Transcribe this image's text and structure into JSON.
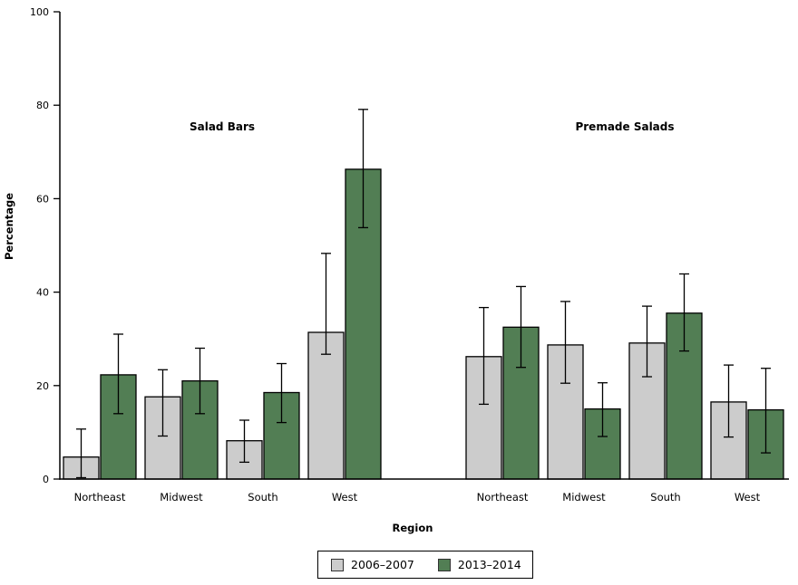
{
  "chart_data": {
    "type": "bar",
    "title": "",
    "xlabel": "Region",
    "ylabel": "Percentage",
    "ylim": [
      0,
      100
    ],
    "yticks": [
      0,
      20,
      40,
      60,
      80,
      100
    ],
    "grid": false,
    "error_bars": true,
    "bar_colors": {
      "gray": "#cccccc",
      "green": "#527e54"
    },
    "legend": {
      "position": "bottom",
      "entries": [
        {
          "label": "2006–2007",
          "color": "#cccccc"
        },
        {
          "label": "2013–2014",
          "color": "#527e54"
        }
      ]
    },
    "panels": [
      {
        "title": "Salad Bars",
        "categories": [
          "Northeast",
          "Midwest",
          "South",
          "West"
        ],
        "series": [
          {
            "name": "2006–2007",
            "color": "#cccccc",
            "values": [
              4.7,
              17.6,
              8.2,
              31.4
            ],
            "ci_low": [
              0.3,
              9.2,
              3.6,
              26.7
            ],
            "ci_high": [
              10.7,
              23.4,
              12.6,
              48.3
            ]
          },
          {
            "name": "2013–2014",
            "color": "#527e54",
            "values": [
              22.3,
              21.0,
              18.5,
              66.3
            ],
            "ci_low": [
              14.0,
              14.0,
              12.1,
              53.8
            ],
            "ci_high": [
              31.0,
              28.0,
              24.7,
              79.1
            ]
          }
        ]
      },
      {
        "title": "Premade Salads",
        "categories": [
          "Northeast",
          "Midwest",
          "South",
          "West"
        ],
        "series": [
          {
            "name": "2006–2007",
            "color": "#cccccc",
            "values": [
              26.2,
              28.7,
              29.1,
              16.5
            ],
            "ci_low": [
              16.0,
              20.5,
              21.9,
              9.0
            ],
            "ci_high": [
              36.7,
              38.0,
              37.0,
              24.4
            ]
          },
          {
            "name": "2013–2014",
            "color": "#527e54",
            "values": [
              32.5,
              15.0,
              35.5,
              14.8
            ],
            "ci_low": [
              23.9,
              9.1,
              27.4,
              5.6
            ],
            "ci_high": [
              41.2,
              20.6,
              43.9,
              23.7
            ]
          }
        ]
      }
    ]
  }
}
